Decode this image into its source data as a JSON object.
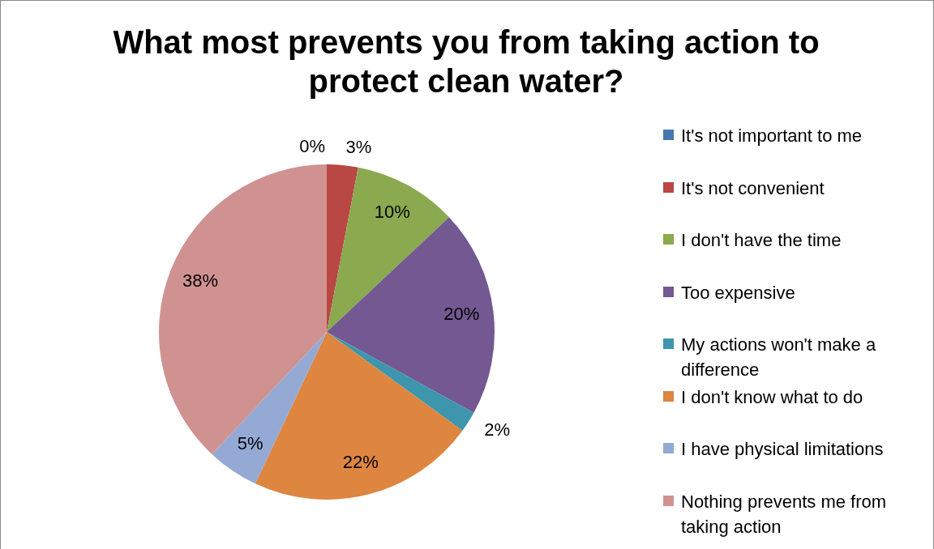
{
  "chart_data": {
    "type": "pie",
    "title": "What most prevents you from taking action to protect clean water?",
    "categories": [
      "It's not important to me",
      "It's not convenient",
      "I don't have the time",
      "Too expensive",
      "My actions won't make a difference",
      "I don't know what to do",
      "I have physical limitations",
      "Nothing prevents me from taking action"
    ],
    "values": [
      0,
      3,
      10,
      20,
      2,
      22,
      5,
      38
    ],
    "colors": [
      "#4677b0",
      "#b94744",
      "#8ba94f",
      "#735891",
      "#3d96ad",
      "#de8540",
      "#94aad4",
      "#d09291"
    ],
    "value_labels": [
      "0%",
      "3%",
      "10%",
      "20%",
      "2%",
      "22%",
      "5%",
      "38%"
    ],
    "legend": "right"
  }
}
